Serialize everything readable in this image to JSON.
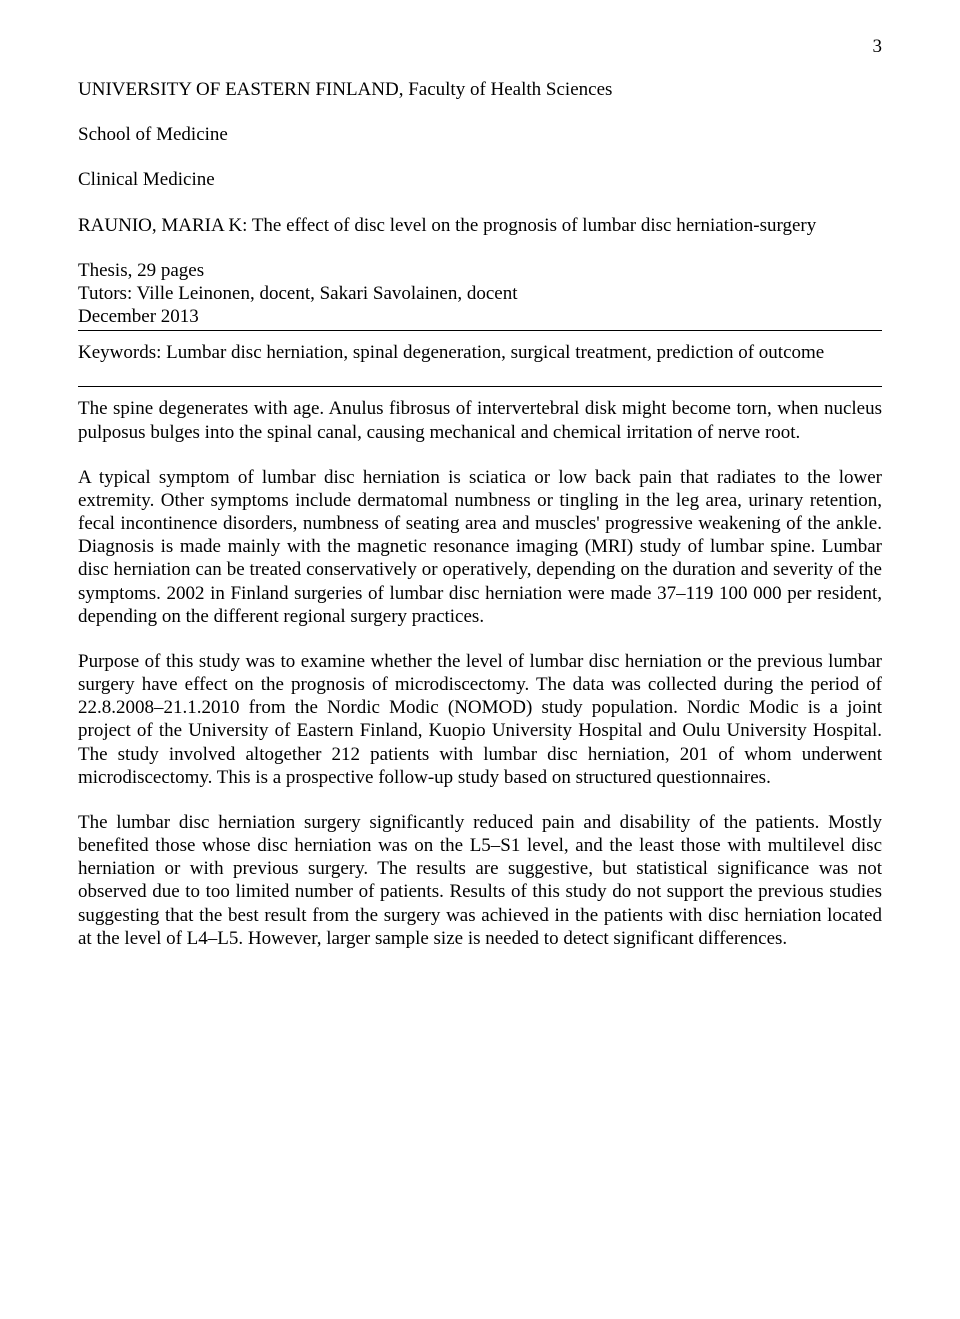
{
  "pageNumber": "3",
  "header": {
    "institution": "UNIVERSITY OF EASTERN FINLAND, Faculty of Health Sciences",
    "school": "School of Medicine",
    "clinical": "Clinical Medicine",
    "author_title": "RAUNIO, MARIA K: The effect of disc level on the prognosis of lumbar disc herniation-surgery",
    "thesis_pages": "Thesis, 29 pages",
    "tutors": "Tutors: Ville Leinonen, docent, Sakari Savolainen, docent",
    "date": "December 2013"
  },
  "keywords": "Keywords: Lumbar disc herniation, spinal degeneration, surgical treatment, prediction of outcome",
  "paragraphs": {
    "p1": "The spine degenerates with age. Anulus fibrosus of intervertebral disk might become torn, when nucleus pulposus bulges into the spinal canal, causing mechanical and chemical irritation of nerve root.",
    "p2": "A typical symptom of lumbar disc herniation is sciatica or low back pain that radiates to the lower extremity. Other symptoms include dermatomal numbness or tingling in the leg area, urinary retention, fecal incontinence disorders, numbness of seating area and muscles' progressive weakening of the ankle. Diagnosis is made mainly with the magnetic resonance imaging (MRI) study of lumbar spine. Lumbar disc herniation can be treated conservatively or operatively, depending on the duration and severity of the symptoms. 2002 in Finland surgeries of lumbar disc herniation were made 37–119 100 000 per resident, depending on the different regional surgery practices.",
    "p3": "Purpose of this study was to examine whether the level of lumbar disc herniation or the previous lumbar surgery have effect on the prognosis of microdiscectomy. The data was collected during the period of 22.8.2008–21.1.2010 from the Nordic Modic (NOMOD) study population. Nordic Modic is a joint project of the University of Eastern Finland, Kuopio University Hospital and Oulu University Hospital. The study involved altogether 212 patients with lumbar disc herniation, 201 of whom underwent microdiscectomy. This is a prospective follow-up study based on structured questionnaires.",
    "p4": "The lumbar disc herniation surgery significantly reduced pain and disability of the patients. Mostly benefited those whose disc herniation was on the L5–S1 level, and the least those with multilevel disc herniation or with previous surgery. The results are suggestive, but statistical significance was not observed due to too limited number of patients. Results of this study do not support the previous studies suggesting that the best result from the surgery was achieved in the patients with disc herniation located at the level of L4–L5. However, larger sample size is needed to detect significant differences."
  }
}
